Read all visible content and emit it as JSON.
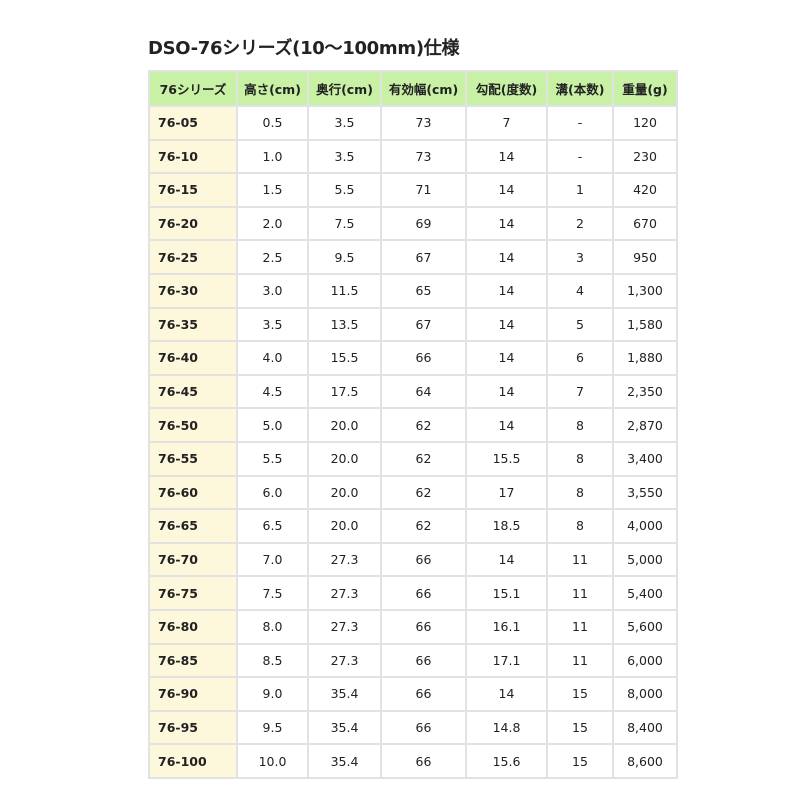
{
  "title": "DSO-76シリーズ(10～100mm)仕様",
  "colors": {
    "header_bg": "#c9f1a6",
    "first_col_bg": "#fdf7dc",
    "border": "#e2e2e2"
  },
  "headers": [
    "76シリーズ",
    "高さ(cm)",
    "奥行(cm)",
    "有効幅(cm)",
    "勾配(度数)",
    "溝(本数)",
    "重量(g)"
  ],
  "rows": [
    [
      "76-05",
      "0.5",
      "3.5",
      "73",
      "7",
      "-",
      "120"
    ],
    [
      "76-10",
      "1.0",
      "3.5",
      "73",
      "14",
      "-",
      "230"
    ],
    [
      "76-15",
      "1.5",
      "5.5",
      "71",
      "14",
      "1",
      "420"
    ],
    [
      "76-20",
      "2.0",
      "7.5",
      "69",
      "14",
      "2",
      "670"
    ],
    [
      "76-25",
      "2.5",
      "9.5",
      "67",
      "14",
      "3",
      "950"
    ],
    [
      "76-30",
      "3.0",
      "11.5",
      "65",
      "14",
      "4",
      "1,300"
    ],
    [
      "76-35",
      "3.5",
      "13.5",
      "67",
      "14",
      "5",
      "1,580"
    ],
    [
      "76-40",
      "4.0",
      "15.5",
      "66",
      "14",
      "6",
      "1,880"
    ],
    [
      "76-45",
      "4.5",
      "17.5",
      "64",
      "14",
      "7",
      "2,350"
    ],
    [
      "76-50",
      "5.0",
      "20.0",
      "62",
      "14",
      "8",
      "2,870"
    ],
    [
      "76-55",
      "5.5",
      "20.0",
      "62",
      "15.5",
      "8",
      "3,400"
    ],
    [
      "76-60",
      "6.0",
      "20.0",
      "62",
      "17",
      "8",
      "3,550"
    ],
    [
      "76-65",
      "6.5",
      "20.0",
      "62",
      "18.5",
      "8",
      "4,000"
    ],
    [
      "76-70",
      "7.0",
      "27.3",
      "66",
      "14",
      "11",
      "5,000"
    ],
    [
      "76-75",
      "7.5",
      "27.3",
      "66",
      "15.1",
      "11",
      "5,400"
    ],
    [
      "76-80",
      "8.0",
      "27.3",
      "66",
      "16.1",
      "11",
      "5,600"
    ],
    [
      "76-85",
      "8.5",
      "27.3",
      "66",
      "17.1",
      "11",
      "6,000"
    ],
    [
      "76-90",
      "9.0",
      "35.4",
      "66",
      "14",
      "15",
      "8,000"
    ],
    [
      "76-95",
      "9.5",
      "35.4",
      "66",
      "14.8",
      "15",
      "8,400"
    ],
    [
      "76-100",
      "10.0",
      "35.4",
      "66",
      "15.6",
      "15",
      "8,600"
    ]
  ]
}
